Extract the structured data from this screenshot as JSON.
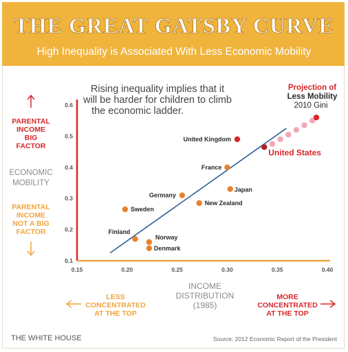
{
  "header": {
    "title": "THE GREAT GATSBY CURVE",
    "subtitle": "High Inequality is Associated With Less Economic Mobility"
  },
  "colors": {
    "header_bg": "#f0b43d",
    "orange": "#e8822e",
    "red": "#d7262a",
    "pink": "#f2a9b5",
    "trend_line": "#2b5c97",
    "gray_text": "#8a8a8a",
    "dark_text": "#2a2a2a",
    "arrow_orange": "#f1a43b"
  },
  "annotation": {
    "line1": "Rising inequality implies that it",
    "line2": "will be harder for children to climb",
    "line3": "the economic ladder."
  },
  "projection": {
    "line1": "Projection of",
    "line2": "Less Mobility",
    "line3": "2010 Gini"
  },
  "y_axis": {
    "label_line1": "ECONOMIC",
    "label_line2": "MOBILITY",
    "top_line1": "PARENTAL",
    "top_line2": "INCOME",
    "top_line3": "BIG",
    "top_line4": "FACTOR",
    "bottom_line1": "PARENTAL",
    "bottom_line2": "INCOME",
    "bottom_line3": "NOT A BIG",
    "bottom_line4": "FACTOR"
  },
  "x_axis": {
    "label_line1": "INCOME",
    "label_line2": "DISTRIBUTION",
    "label_line3": "(1985)",
    "left_line1": "LESS",
    "left_line2": "CONCENTRATED",
    "left_line3": "AT THE TOP",
    "right_line1": "MORE",
    "right_line2": "CONCENTRATED",
    "right_line3": "AT THE TOP"
  },
  "footer": {
    "brand": "THE WHITE HOUSE",
    "source": "Source: 2012 Economic Report of the President"
  },
  "chart_data": {
    "type": "scatter",
    "title": "THE GREAT GATSBY CURVE",
    "subtitle": "High Inequality is Associated With Less Economic Mobility",
    "xlim": [
      0.15,
      0.4
    ],
    "ylim": [
      0.1,
      0.6
    ],
    "x_ticks": [
      "0.15",
      "0.20",
      "0.25",
      "0.30",
      "0.35",
      "0.40"
    ],
    "x_tick_values": [
      0.15,
      0.2,
      0.25,
      0.3,
      0.35,
      0.4
    ],
    "y_ticks": [
      "0.1",
      "0.2",
      "0.3",
      "0.4",
      "0.5",
      "0.6"
    ],
    "y_tick_values": [
      0.1,
      0.2,
      0.3,
      0.4,
      0.5,
      0.6
    ],
    "points": [
      {
        "label": "United Kingdom",
        "x": 0.31,
        "y": 0.49,
        "color": "red"
      },
      {
        "label": "France",
        "x": 0.3,
        "y": 0.4,
        "color": "orange"
      },
      {
        "label": "Japan",
        "x": 0.303,
        "y": 0.33,
        "color": "orange"
      },
      {
        "label": "Germany",
        "x": 0.255,
        "y": 0.31,
        "color": "orange"
      },
      {
        "label": "New Zealand",
        "x": 0.272,
        "y": 0.285,
        "color": "orange"
      },
      {
        "label": "Sweden",
        "x": 0.198,
        "y": 0.265,
        "color": "orange"
      },
      {
        "label": "Finland",
        "x": 0.208,
        "y": 0.17,
        "color": "orange"
      },
      {
        "label": "Norway",
        "x": 0.222,
        "y": 0.16,
        "color": "orange"
      },
      {
        "label": "Denmark",
        "x": 0.222,
        "y": 0.14,
        "color": "orange"
      },
      {
        "label": "United States",
        "x": 0.337,
        "y": 0.465,
        "color": "darkred"
      }
    ],
    "projection_points": [
      {
        "x": 0.345,
        "y": 0.475
      },
      {
        "x": 0.353,
        "y": 0.49
      },
      {
        "x": 0.361,
        "y": 0.505
      },
      {
        "x": 0.369,
        "y": 0.52
      },
      {
        "x": 0.377,
        "y": 0.535
      },
      {
        "x": 0.385,
        "y": 0.55
      },
      {
        "x": 0.389,
        "y": 0.56
      }
    ],
    "trend_line": {
      "x": [
        0.183,
        0.359
      ],
      "y": [
        0.125,
        0.525
      ]
    }
  }
}
